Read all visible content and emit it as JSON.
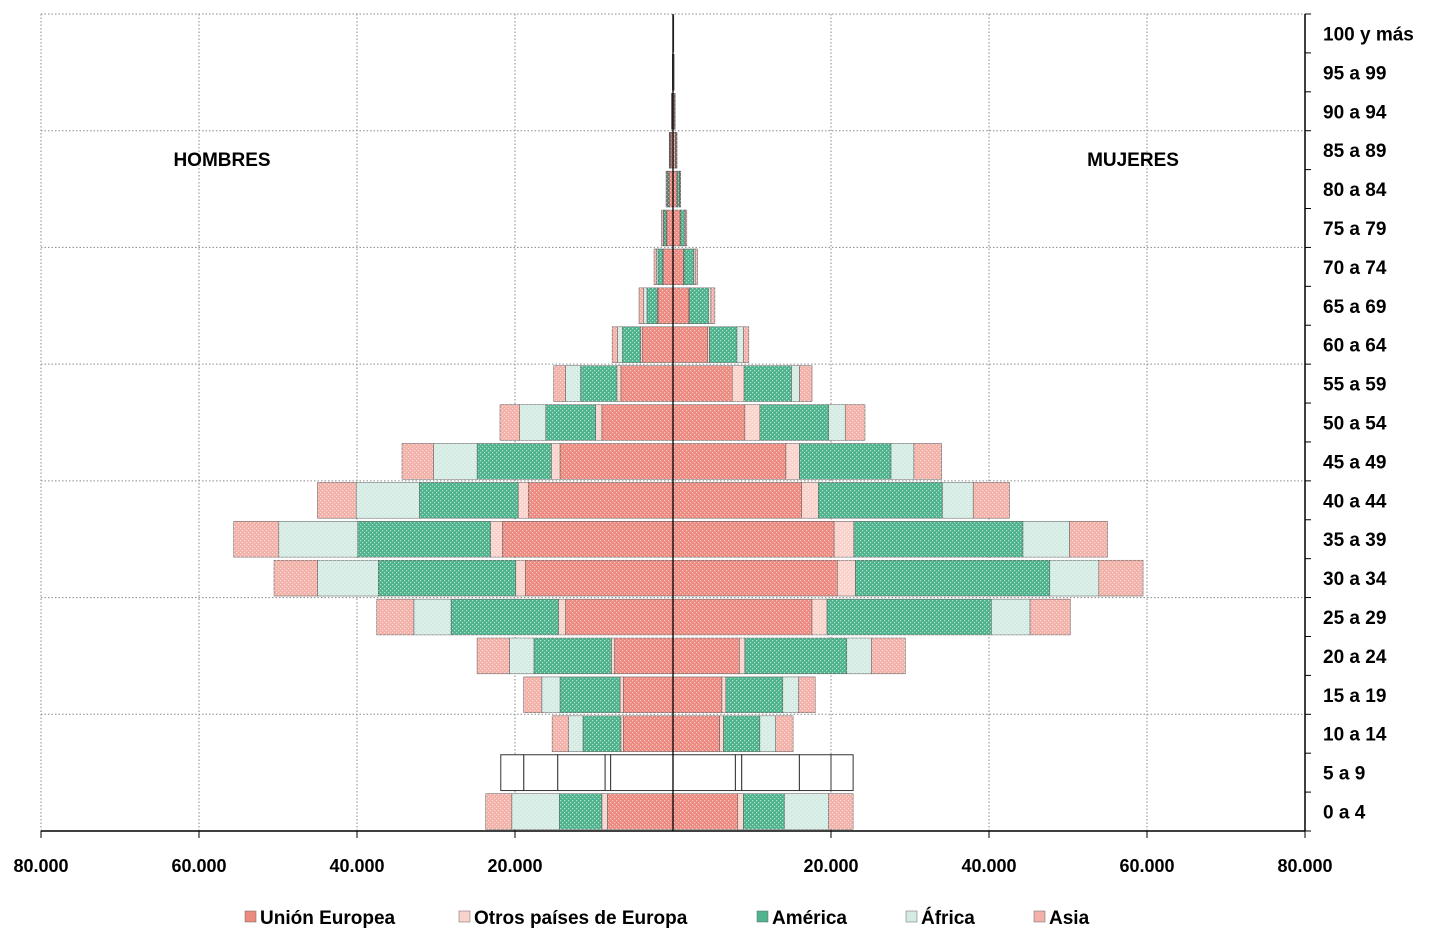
{
  "chart_data": {
    "type": "bar",
    "orientation": "horizontal",
    "stacked": true,
    "diverging": true,
    "title": "",
    "xlabel": "",
    "ylabel": "",
    "xlim": [
      -80000,
      80000
    ],
    "x_ticks": [
      {
        "value": -80000,
        "label": "80.000"
      },
      {
        "value": -60000,
        "label": "60.000"
      },
      {
        "value": -40000,
        "label": "40.000"
      },
      {
        "value": -20000,
        "label": "20.000"
      },
      {
        "value": 20000,
        "label": "20.000"
      },
      {
        "value": 40000,
        "label": "40.000"
      },
      {
        "value": 60000,
        "label": "60.000"
      },
      {
        "value": 80000,
        "label": "80.000"
      }
    ],
    "grid": true,
    "legend_position": "bottom",
    "side_labels": {
      "left": "HOMBRES",
      "right": "MUJERES"
    },
    "categories": [
      "0 a 4",
      "5 a 9",
      "10 a 14",
      "15 a 19",
      "20 a 24",
      "25 a 29",
      "30 a 34",
      "35 a 39",
      "40 a 44",
      "45 a 49",
      "50 a 54",
      "55 a 59",
      "60 a 64",
      "65 a 69",
      "70 a 74",
      "75 a 79",
      "80 a 84",
      "85 a 89",
      "90 a 94",
      "95 a 99",
      "100 y más"
    ],
    "series": [
      {
        "name": "Unión Europea",
        "color": "#ec8a80",
        "hombres": [
          8300,
          7900,
          6300,
          6300,
          7400,
          13600,
          18700,
          21600,
          18300,
          14300,
          9000,
          6600,
          3900,
          1900,
          1200,
          800,
          500,
          300,
          150,
          60,
          20
        ],
        "mujeres": [
          8200,
          7900,
          5900,
          6200,
          8400,
          17600,
          20800,
          20400,
          16300,
          14300,
          9100,
          7500,
          4400,
          2000,
          1300,
          900,
          500,
          300,
          150,
          60,
          20
        ]
      },
      {
        "name": "Otros países de Europa",
        "color": "#f8d2cb",
        "hombres": [
          700,
          700,
          300,
          400,
          400,
          900,
          1200,
          1500,
          1300,
          1100,
          800,
          500,
          200,
          100,
          100,
          50,
          30,
          10,
          5,
          2,
          1
        ],
        "mujeres": [
          700,
          800,
          500,
          500,
          700,
          1900,
          2300,
          2500,
          2100,
          1700,
          1900,
          1500,
          200,
          100,
          100,
          50,
          30,
          10,
          5,
          2,
          1
        ]
      },
      {
        "name": "América",
        "color": "#4fb38d",
        "hombres": [
          5400,
          6000,
          4800,
          7600,
          9800,
          13600,
          17400,
          16800,
          12500,
          9400,
          6300,
          4600,
          2300,
          1300,
          600,
          300,
          200,
          100,
          30,
          10,
          2
        ],
        "mujeres": [
          5200,
          7300,
          4600,
          7200,
          12900,
          20800,
          24600,
          21400,
          15700,
          11600,
          8700,
          6000,
          3500,
          2400,
          1200,
          500,
          300,
          100,
          30,
          10,
          2
        ]
      },
      {
        "name": "África",
        "color": "#d3ebe2",
        "hombres": [
          6000,
          4300,
          1800,
          2300,
          3100,
          4700,
          7700,
          10000,
          8000,
          5500,
          3300,
          1900,
          600,
          400,
          200,
          100,
          50,
          20,
          5,
          2,
          1
        ],
        "mujeres": [
          5600,
          4000,
          2000,
          2000,
          3100,
          4900,
          6200,
          5900,
          3900,
          2900,
          2100,
          1000,
          800,
          300,
          200,
          100,
          50,
          20,
          5,
          2,
          1
        ]
      },
      {
        "name": "Asia",
        "color": "#f2b1a9",
        "hombres": [
          3300,
          2900,
          2100,
          2300,
          4100,
          4700,
          5500,
          5700,
          4900,
          4000,
          2500,
          1500,
          700,
          600,
          300,
          200,
          100,
          50,
          10,
          5,
          1
        ],
        "mujeres": [
          3100,
          2800,
          2200,
          2100,
          4300,
          5100,
          5600,
          4800,
          4600,
          3500,
          2500,
          1600,
          700,
          500,
          300,
          200,
          100,
          50,
          10,
          5,
          1
        ]
      }
    ],
    "outlined_row": "5 a 9"
  }
}
